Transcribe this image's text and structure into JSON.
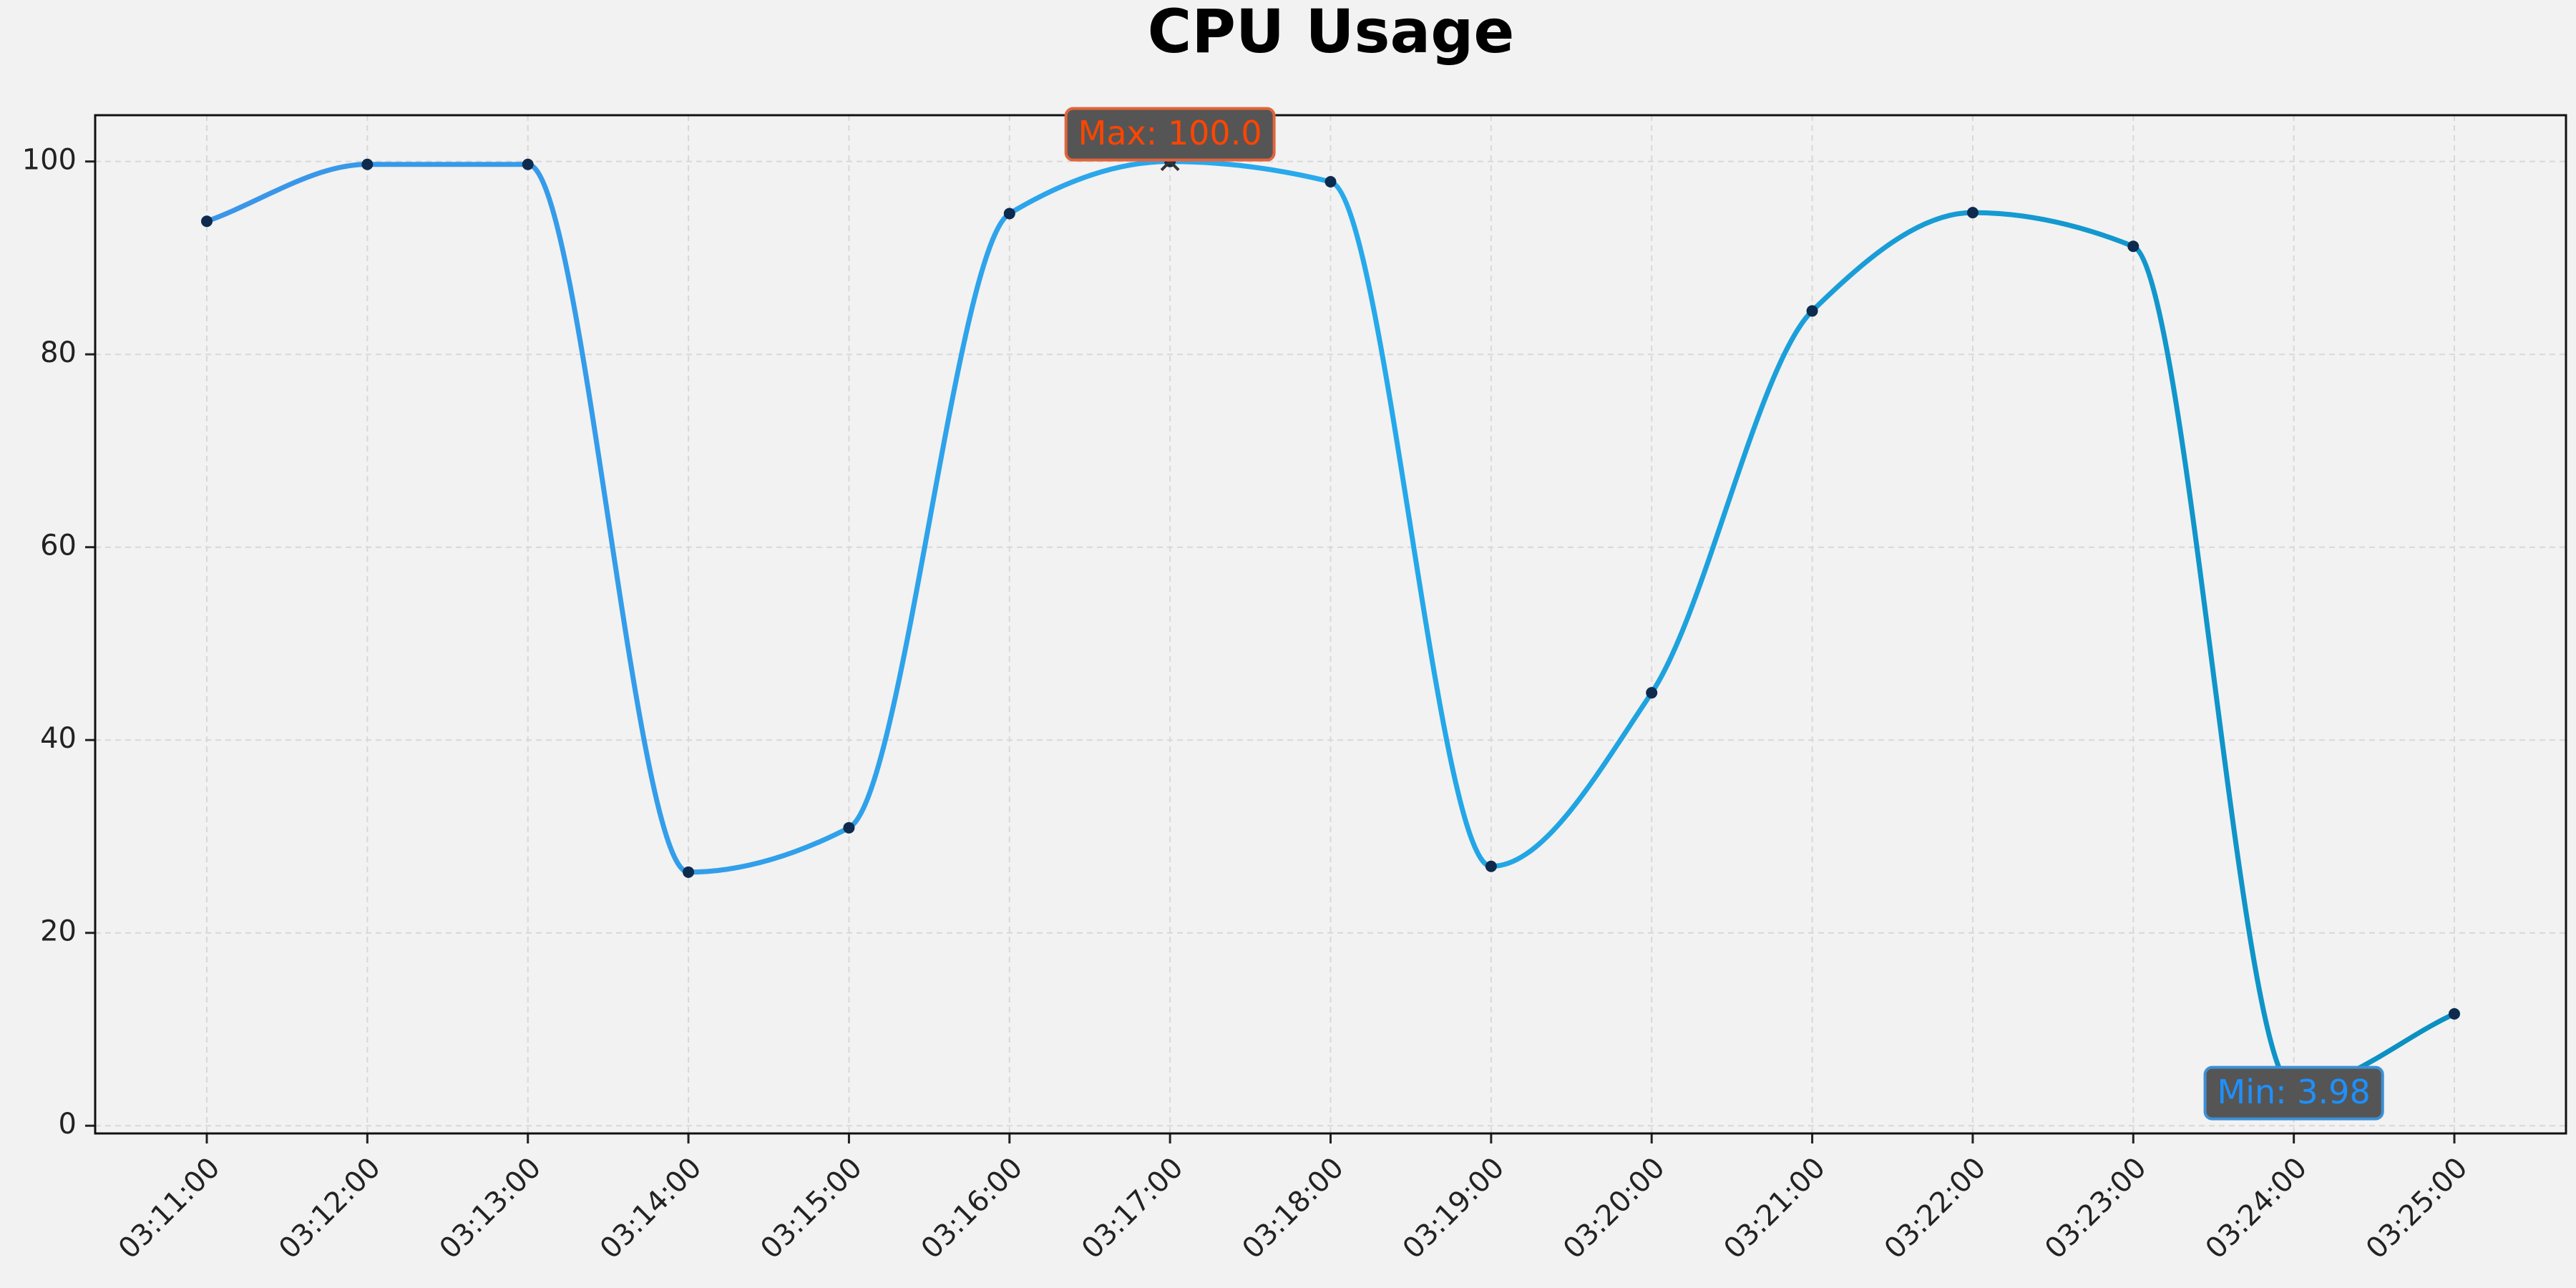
{
  "chart_data": {
    "type": "line",
    "title": "CPU Usage",
    "categories": [
      "03:11:00",
      "03:12:00",
      "03:13:00",
      "03:14:00",
      "03:15:00",
      "03:16:00",
      "03:17:00",
      "03:18:00",
      "03:19:00",
      "03:20:00",
      "03:21:00",
      "03:22:00",
      "03:23:00",
      "03:24:00",
      "03:25:00"
    ],
    "series": [
      {
        "values": [
          93.8,
          99.7,
          99.7,
          26.3,
          30.9,
          94.6,
          100.0,
          97.9,
          26.9,
          44.9,
          84.5,
          94.7,
          91.2,
          3.98,
          11.6
        ],
        "colors": [
          "#3b95e8",
          "#27aaec",
          "#0a8fc0"
        ],
        "marker_color": "#0d2b4e"
      }
    ],
    "annotations": [
      {
        "text": "Max: 100.0",
        "index": 6,
        "color": "#ff4500",
        "border": "#e2643a"
      },
      {
        "text": "Min: 3.98",
        "index": 13,
        "color": "#1e90ff",
        "border": "#3c8fd6"
      }
    ],
    "ylim": [
      -0.8,
      104.8
    ],
    "yticks": [
      0,
      20,
      40,
      60,
      80,
      100
    ],
    "grid": true
  }
}
